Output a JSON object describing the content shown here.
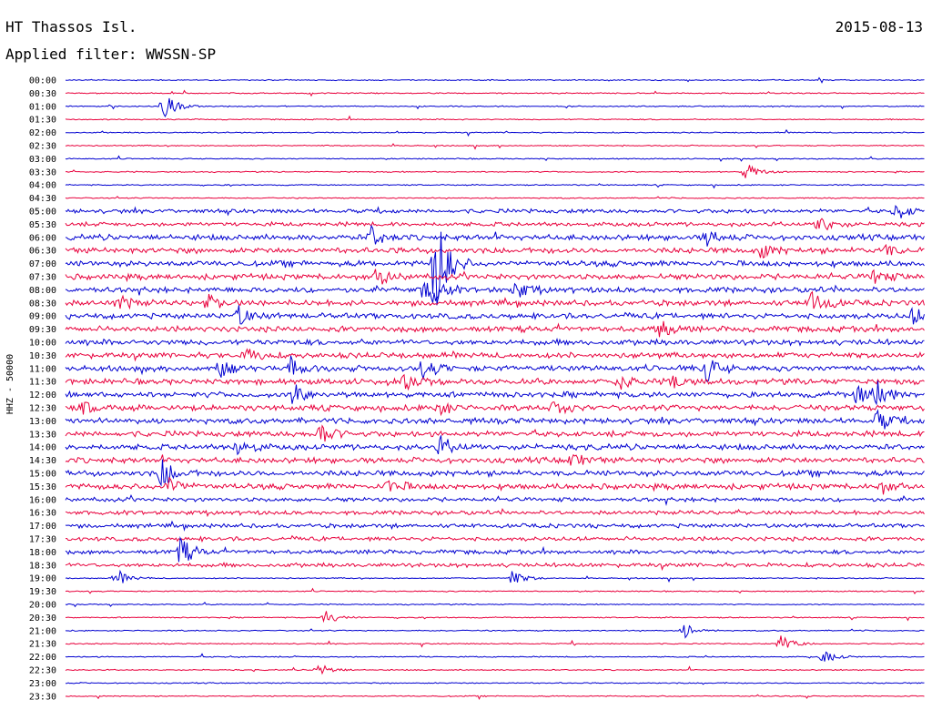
{
  "header": {
    "station": "HT Thassos Isl.",
    "date": "2015-08-13",
    "filter": "Applied filter: WWSSN-SP"
  },
  "chart_data": {
    "type": "line",
    "subtype": "helicorder",
    "ylabel": "HHZ - 50000",
    "row_labels": [
      "00:00",
      "00:30",
      "01:00",
      "01:30",
      "02:00",
      "02:30",
      "03:00",
      "03:30",
      "04:00",
      "04:30",
      "05:00",
      "05:30",
      "06:00",
      "06:30",
      "07:00",
      "07:30",
      "08:00",
      "08:30",
      "09:00",
      "09:30",
      "10:00",
      "10:30",
      "11:00",
      "11:30",
      "12:00",
      "12:30",
      "13:00",
      "13:30",
      "14:00",
      "14:30",
      "15:00",
      "15:30",
      "16:00",
      "16:30",
      "17:00",
      "17:30",
      "18:00",
      "18:30",
      "19:00",
      "19:30",
      "20:00",
      "20:30",
      "21:00",
      "21:30",
      "22:00",
      "22:30",
      "23:00",
      "23:30"
    ],
    "colors": [
      "#0000d0",
      "#e8003c"
    ],
    "grid": false,
    "legend": "none"
  }
}
